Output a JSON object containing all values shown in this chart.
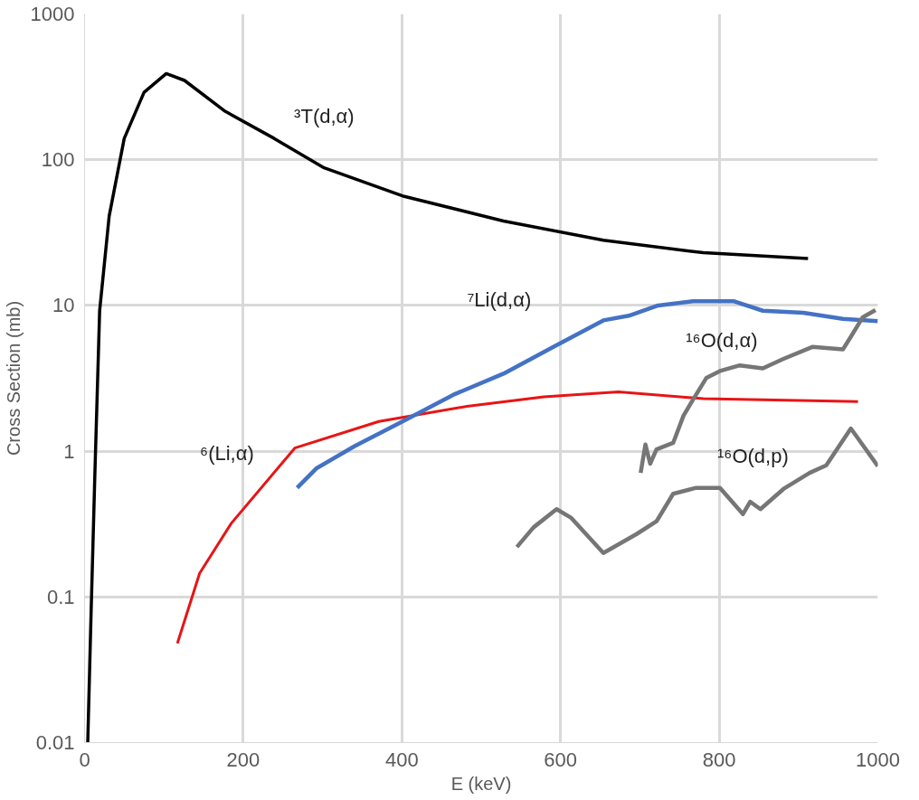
{
  "chart_data": {
    "type": "line",
    "xlabel": "E (keV)",
    "ylabel": "Cross Section (mb)",
    "log": "y",
    "grid": true,
    "legend": false,
    "xlim": [
      0,
      1000
    ],
    "xticks": [
      0,
      200,
      400,
      600,
      800,
      1000
    ],
    "ylim": [
      0.01,
      1000
    ],
    "yticks": [
      0.01,
      0.1,
      1,
      10,
      100,
      1000
    ],
    "series": [
      {
        "name": "³T(d,α)",
        "color": "#000000",
        "x": [
          4,
          8,
          13,
          19,
          31,
          50,
          75,
          103,
          126,
          176,
          239,
          302,
          403,
          528,
          654,
          780,
          912
        ],
        "values": [
          0.01,
          0.07,
          0.7,
          9.2,
          41,
          140,
          290,
          390,
          350,
          217,
          140,
          88,
          56,
          38,
          28,
          23,
          21
        ]
      },
      {
        "name": "⁶(Li,α)",
        "color": "#e81416",
        "x": [
          117,
          145,
          185,
          265,
          371,
          482,
          579,
          673,
          780,
          975
        ],
        "values": [
          0.048,
          0.145,
          0.32,
          1.05,
          1.6,
          2.03,
          2.36,
          2.55,
          2.29,
          2.19
        ]
      },
      {
        "name": "⁷Li(d,α)",
        "color": "#4472c4",
        "x": [
          268,
          292,
          340,
          403,
          465,
          528,
          591,
          654,
          686,
          723,
          767,
          818,
          855,
          906,
          956,
          1000
        ],
        "values": [
          0.56,
          0.76,
          1.08,
          1.62,
          2.44,
          3.4,
          5.2,
          7.9,
          8.5,
          10,
          10.7,
          10.7,
          9.2,
          8.9,
          8.1,
          7.8
        ]
      },
      {
        "name": "¹⁶O(d,α)",
        "color": "#767676",
        "x": [
          701,
          707,
          713,
          721,
          742,
          755,
          767,
          784,
          801,
          826,
          855,
          881,
          918,
          956,
          966,
          981,
          997
        ],
        "values": [
          0.71,
          1.11,
          0.82,
          1.03,
          1.14,
          1.75,
          2.26,
          3.19,
          3.55,
          3.88,
          3.7,
          4.3,
          5.2,
          5.0,
          6.1,
          8.3,
          9.3
        ]
      },
      {
        "name": "¹⁶O(d,p)",
        "color": "#767676",
        "x": [
          545,
          566,
          595,
          613,
          654,
          696,
          721,
          742,
          771,
          801,
          830,
          839,
          852,
          881,
          914,
          935,
          966,
          1000
        ],
        "values": [
          0.22,
          0.3,
          0.4,
          0.35,
          0.2,
          0.27,
          0.33,
          0.51,
          0.56,
          0.56,
          0.37,
          0.45,
          0.4,
          0.55,
          0.71,
          0.8,
          1.43,
          0.79
        ]
      }
    ]
  }
}
